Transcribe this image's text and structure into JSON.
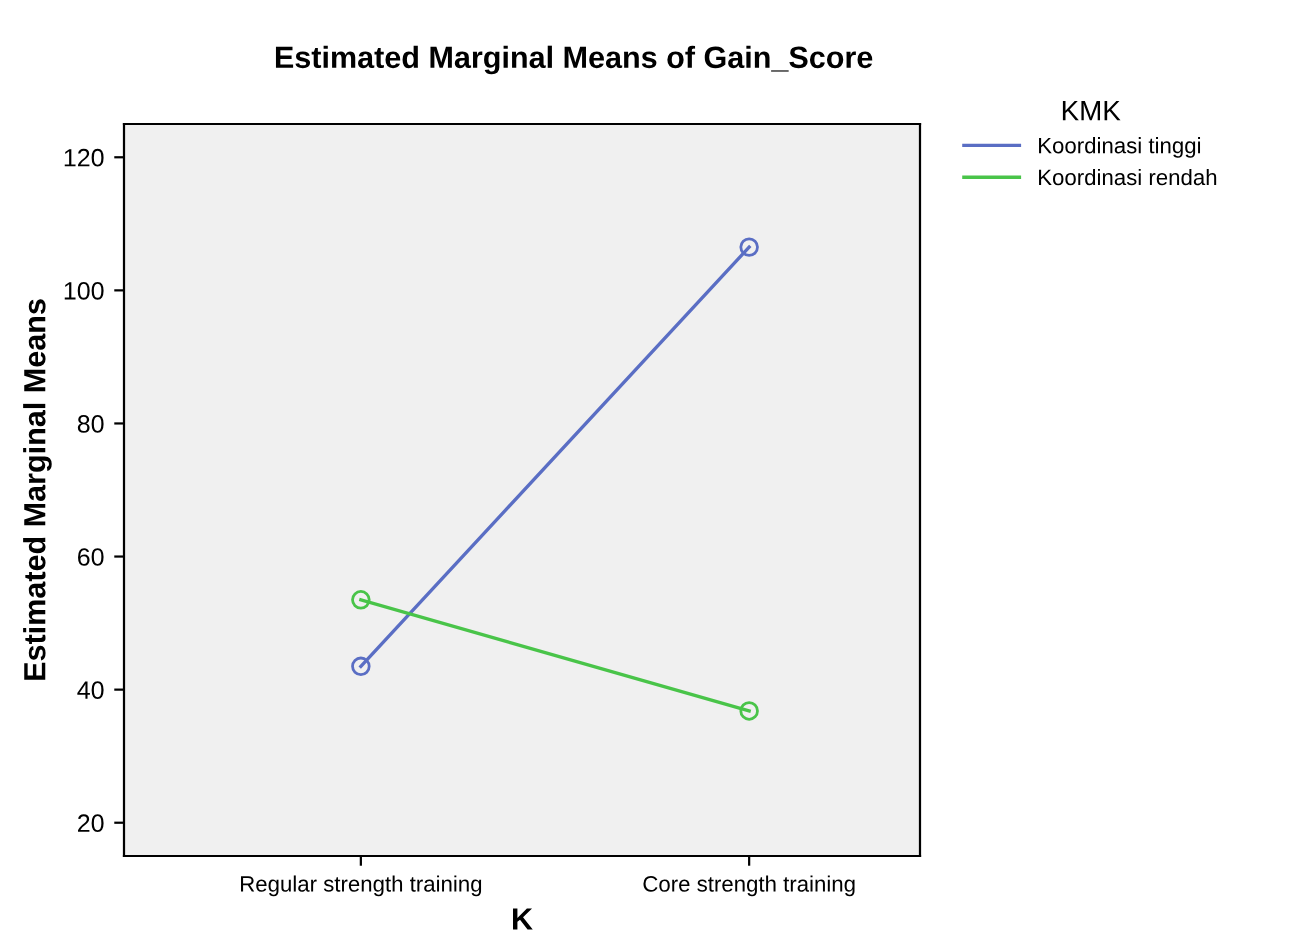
{
  "chart_data": {
    "type": "line",
    "title": "Estimated Marginal Means of Gain_Score",
    "xlabel": "K",
    "ylabel": "Estimated Marginal Means",
    "legend_title": "KMK",
    "categories": [
      "Regular strength training",
      "Core strength training"
    ],
    "series": [
      {
        "name": "Koordinasi tinggi",
        "color": "#5a6ec4",
        "values": [
          43.5,
          106.5
        ]
      },
      {
        "name": "Koordinasi rendah",
        "color": "#49c449",
        "values": [
          53.5,
          36.8
        ]
      }
    ],
    "ylim": [
      15,
      125
    ],
    "yticks": [
      20,
      40,
      60,
      80,
      100,
      120
    ],
    "grid": false,
    "legend": "top right",
    "marker": "circle",
    "line_style": "solid"
  }
}
